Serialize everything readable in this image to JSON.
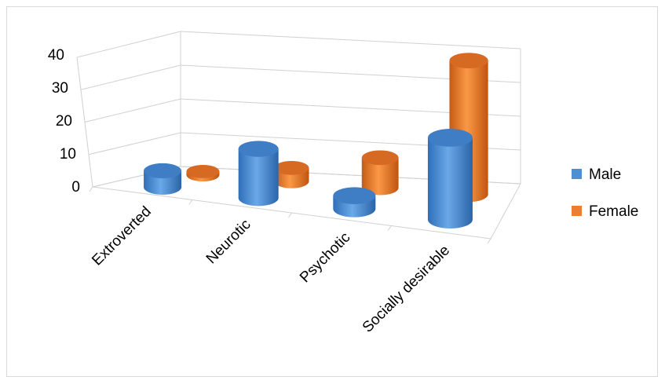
{
  "chart_data": {
    "type": "bar",
    "style": "3d-cylinder",
    "title": "",
    "xlabel": "",
    "ylabel": "",
    "categories": [
      "Extroverted",
      "Neurotic",
      "Psychotic",
      "Socially desirable"
    ],
    "series": [
      {
        "name": "Male",
        "color": "#4e8fd3",
        "values": [
          5,
          15,
          4,
          25
        ]
      },
      {
        "name": "Female",
        "color": "#ed7d31",
        "values": [
          1,
          4,
          9,
          40
        ]
      }
    ],
    "ylim": [
      0,
      40
    ],
    "yticks": [
      "0",
      "10",
      "20",
      "30",
      "40"
    ],
    "grid": true,
    "legend_position": "right"
  }
}
